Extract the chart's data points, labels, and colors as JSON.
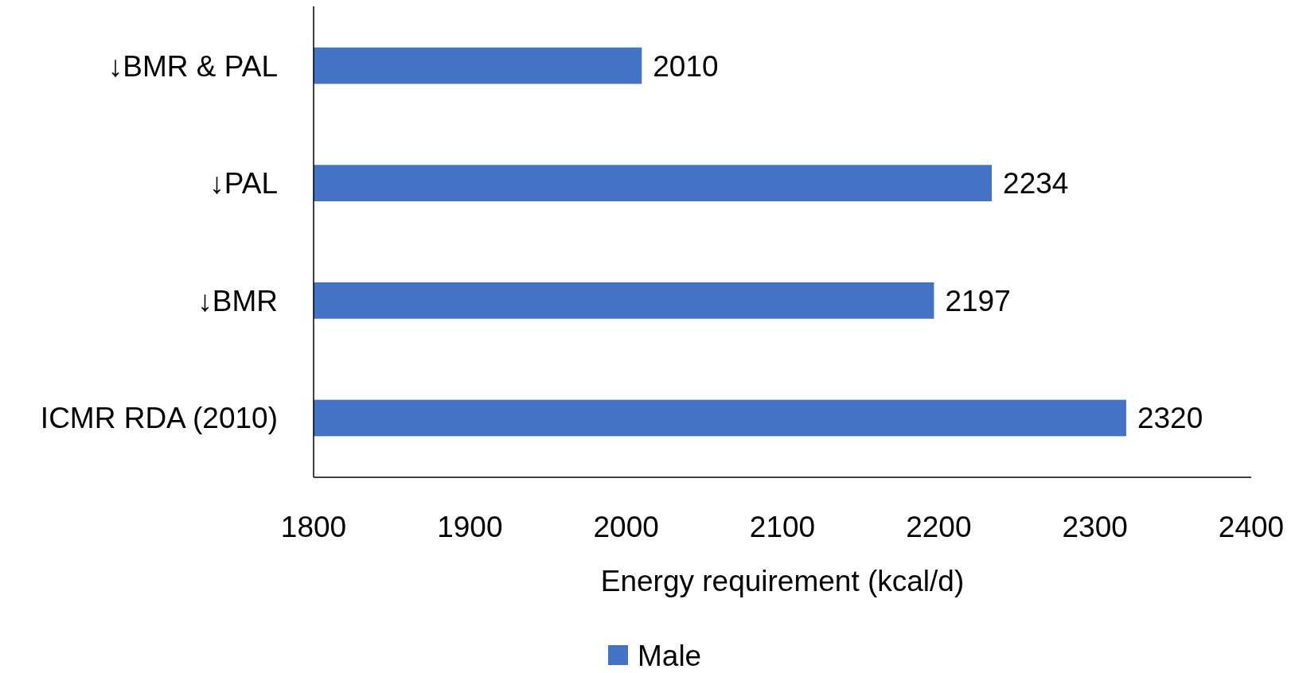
{
  "chart_data": {
    "type": "bar",
    "orientation": "horizontal",
    "xlabel": "Energy requirement (kcal/d)",
    "categories": [
      "↓BMR & PAL",
      "↓PAL",
      "↓BMR",
      "ICMR RDA (2010)"
    ],
    "series": [
      {
        "name": "Male",
        "color": "#4472c4",
        "values": [
          2010,
          2234,
          2197,
          2320
        ]
      }
    ],
    "xlim": [
      1800,
      2400
    ],
    "xticks": [
      1800,
      1900,
      2000,
      2100,
      2200,
      2300,
      2400
    ],
    "data_labels": true,
    "legend": "bottom",
    "grid": false
  }
}
